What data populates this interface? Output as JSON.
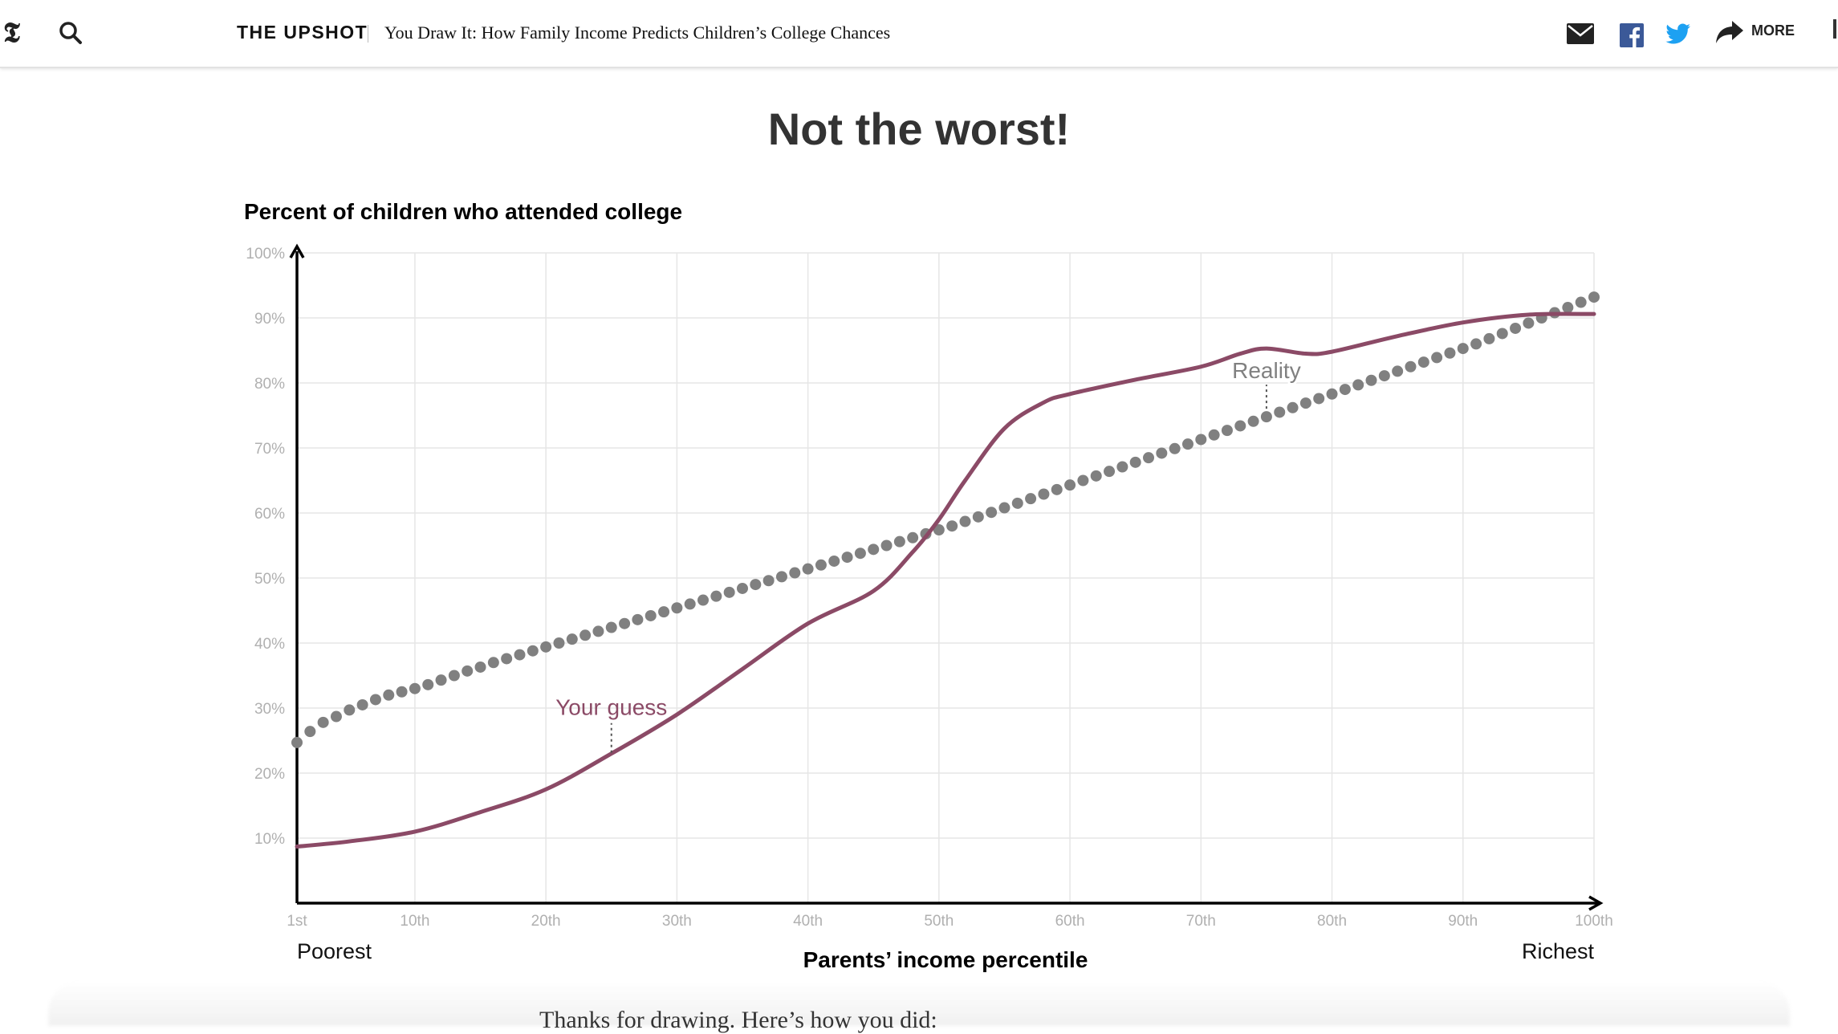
{
  "header": {
    "logo": "𝕿",
    "section": "THE UPSHOT",
    "headline": "You Draw It: How Family Income Predicts Children’s College Chances",
    "more_label": "MORE"
  },
  "result_title": "Not the worst!",
  "next_text": "Thanks for drawing. Here’s how you did:",
  "chart_data": {
    "type": "line",
    "title": "",
    "ylabel": "Percent of children who attended college",
    "xlabel": "Parents’ income percentile",
    "x_left_caption": "Poorest",
    "x_right_caption": "Richest",
    "xlim": [
      1,
      100
    ],
    "ylim": [
      0,
      100
    ],
    "x_ticks": [
      1,
      10,
      20,
      30,
      40,
      50,
      60,
      70,
      80,
      90,
      100
    ],
    "x_tick_labels": [
      "1st",
      "10th",
      "20th",
      "30th",
      "40th",
      "50th",
      "60th",
      "70th",
      "80th",
      "90th",
      "100th"
    ],
    "y_ticks": [
      10,
      20,
      30,
      40,
      50,
      60,
      70,
      80,
      90,
      100
    ],
    "y_tick_labels": [
      "10%",
      "20%",
      "30%",
      "40%",
      "50%",
      "60%",
      "70%",
      "80%",
      "90%",
      "100%"
    ],
    "grid": true,
    "colors": {
      "guess": "#8b4a66",
      "reality": "#808080",
      "grid": "#e6e6e6",
      "axis": "#000000",
      "tick": "#b0b0b0"
    },
    "series": [
      {
        "name": "Your guess",
        "style": "line",
        "x": [
          1,
          5,
          10,
          15,
          20,
          25,
          30,
          35,
          40,
          45,
          48,
          50,
          52,
          55,
          58,
          60,
          65,
          70,
          73,
          75,
          78,
          80,
          85,
          90,
          95,
          100
        ],
        "y": [
          8.7,
          9.5,
          11,
          14,
          17.5,
          23,
          29,
          36,
          43,
          48,
          54,
          59,
          65,
          73,
          77,
          78.3,
          80.5,
          82.5,
          84.5,
          85.3,
          84.5,
          84.8,
          87.2,
          89.3,
          90.5,
          90.6
        ]
      },
      {
        "name": "Reality",
        "style": "dots",
        "x_start": 1,
        "x_end": 100,
        "y": [
          24.7,
          26.4,
          27.8,
          28.7,
          29.7,
          30.5,
          31.3,
          32.0,
          32.5,
          33.0,
          33.6,
          34.3,
          35.0,
          35.7,
          36.3,
          37.0,
          37.6,
          38.2,
          38.8,
          39.4,
          40.0,
          40.6,
          41.2,
          41.8,
          42.4,
          43.0,
          43.6,
          44.2,
          44.8,
          45.4,
          46.0,
          46.6,
          47.2,
          47.8,
          48.4,
          49.0,
          49.6,
          50.2,
          50.8,
          51.4,
          52.0,
          52.6,
          53.2,
          53.8,
          54.4,
          55.0,
          55.6,
          56.2,
          56.8,
          57.4,
          58.0,
          58.7,
          59.4,
          60.1,
          60.8,
          61.5,
          62.2,
          62.9,
          63.6,
          64.3,
          65.0,
          65.7,
          66.4,
          67.1,
          67.8,
          68.5,
          69.2,
          69.9,
          70.6,
          71.3,
          72.0,
          72.7,
          73.4,
          74.1,
          74.8,
          75.5,
          76.2,
          76.9,
          77.6,
          78.3,
          79.0,
          79.7,
          80.4,
          81.1,
          81.8,
          82.5,
          83.2,
          83.9,
          84.6,
          85.3,
          86.0,
          86.8,
          87.6,
          88.4,
          89.2,
          90.0,
          90.8,
          91.6,
          92.4,
          93.2
        ]
      }
    ],
    "annotations": [
      {
        "text": "Your guess",
        "x": 25,
        "y": 23,
        "color": "#8b4a66"
      },
      {
        "text": "Reality",
        "x": 75,
        "y": 74.8,
        "color": "#808080"
      }
    ]
  }
}
